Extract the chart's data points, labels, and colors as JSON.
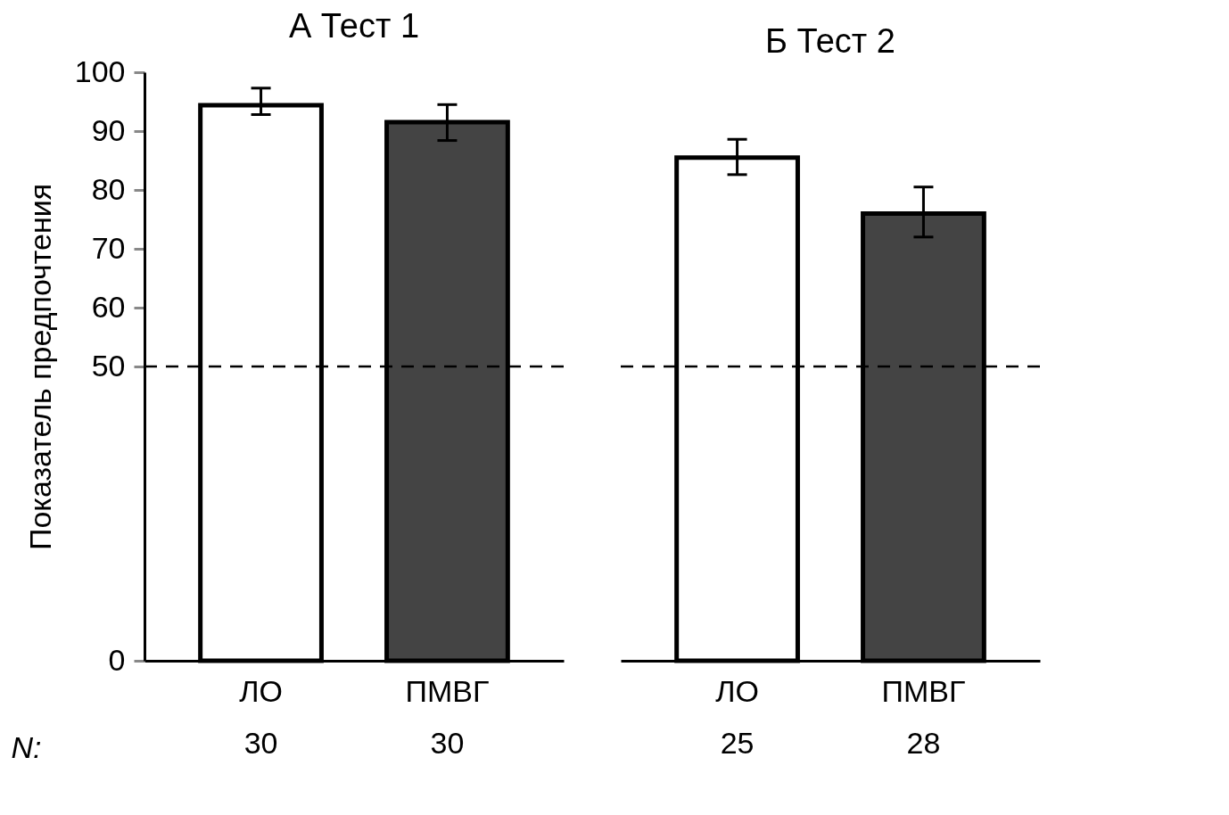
{
  "chart_data": [
    {
      "type": "bar",
      "title": "А  Тест 1",
      "ylabel": "Показатель предпочтения",
      "xlabel": "N:",
      "categories": [
        "ЛО\n30",
        "ПМВГ\n30"
      ],
      "values": [
        94.4,
        91.5
      ],
      "colors": [
        "#ffffff",
        "#444444"
      ],
      "errors": [
        [
          92.8,
          97.3
        ],
        [
          88.4,
          94.5
        ]
      ],
      "ylim": [
        0,
        100
      ],
      "yticks": [
        0,
        50,
        60,
        70,
        80,
        90,
        100
      ],
      "ref_lines": [
        {
          "axis": "y",
          "value": 50,
          "line_style": "dashed"
        }
      ]
    },
    {
      "type": "bar",
      "title": "Б  Тест 2",
      "categories": [
        "ЛО\n25",
        "ПМВГ\n28"
      ],
      "values": [
        85.5,
        76.0
      ],
      "colors": [
        "#ffffff",
        "#444444"
      ],
      "errors": [
        [
          82.6,
          88.6
        ],
        [
          72.0,
          80.5
        ]
      ],
      "ylim": [
        0,
        100
      ],
      "yticks": [
        0,
        50,
        60,
        70,
        80,
        90,
        100
      ],
      "ref_lines": [
        {
          "axis": "y",
          "value": 50,
          "line_style": "dashed"
        }
      ],
      "tick_labels": "x"
    }
  ]
}
